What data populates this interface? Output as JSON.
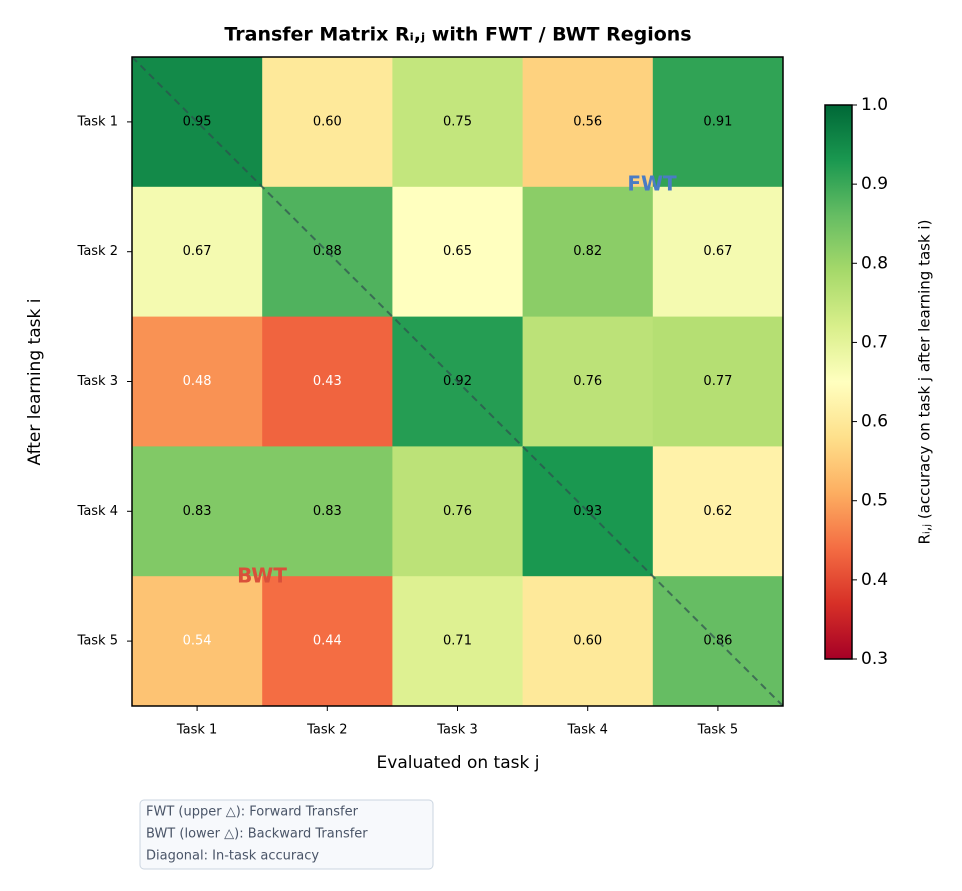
{
  "chart_data": {
    "type": "heatmap",
    "title": "Transfer Matrix Rᵢ,ⱼ with FWT / BWT Regions",
    "x_label": "Evaluated on task j",
    "y_label": "After learning task i",
    "x_categories": [
      "Task 1",
      "Task 2",
      "Task 3",
      "Task 4",
      "Task 5"
    ],
    "y_categories": [
      "Task 1",
      "Task 2",
      "Task 3",
      "Task 4",
      "Task 5"
    ],
    "values": [
      [
        0.95,
        0.6,
        0.75,
        0.56,
        0.91
      ],
      [
        0.67,
        0.88,
        0.65,
        0.82,
        0.67
      ],
      [
        0.48,
        0.43,
        0.92,
        0.76,
        0.77
      ],
      [
        0.83,
        0.83,
        0.76,
        0.93,
        0.62
      ],
      [
        0.54,
        0.44,
        0.71,
        0.6,
        0.86
      ]
    ],
    "value_labels": [
      [
        "0.95",
        "0.60",
        "0.75",
        "0.56",
        "0.91"
      ],
      [
        "0.67",
        "0.88",
        "0.65",
        "0.82",
        "0.67"
      ],
      [
        "0.48",
        "0.43",
        "0.92",
        "0.76",
        "0.77"
      ],
      [
        "0.83",
        "0.83",
        "0.76",
        "0.93",
        "0.62"
      ],
      [
        "0.54",
        "0.44",
        "0.71",
        "0.60",
        "0.86"
      ]
    ],
    "colormap": [
      "#a50026",
      "#d73027",
      "#f46d43",
      "#fdae61",
      "#fee08b",
      "#ffffbf",
      "#d9ef8b",
      "#a6d96a",
      "#66bd63",
      "#1a9850",
      "#006837"
    ],
    "colorbar_label": "Rᵢ,ⱼ (accuracy on task j after learning task i)",
    "clim": [
      0.3,
      1.0
    ],
    "cticks": [
      0.3,
      0.4,
      0.5,
      0.6,
      0.7,
      0.8,
      0.9,
      {
        "value": 1.0,
        "label": "1.0"
      }
    ],
    "annotations": [
      {
        "text": "FWT",
        "color": "#4a7cc4"
      },
      {
        "text": "BWT",
        "color": "#d9503a"
      }
    ],
    "note": [
      "FWT (upper △): Forward Transfer",
      "BWT (lower △): Backward Transfer",
      "Diagonal: In-task accuracy"
    ]
  }
}
